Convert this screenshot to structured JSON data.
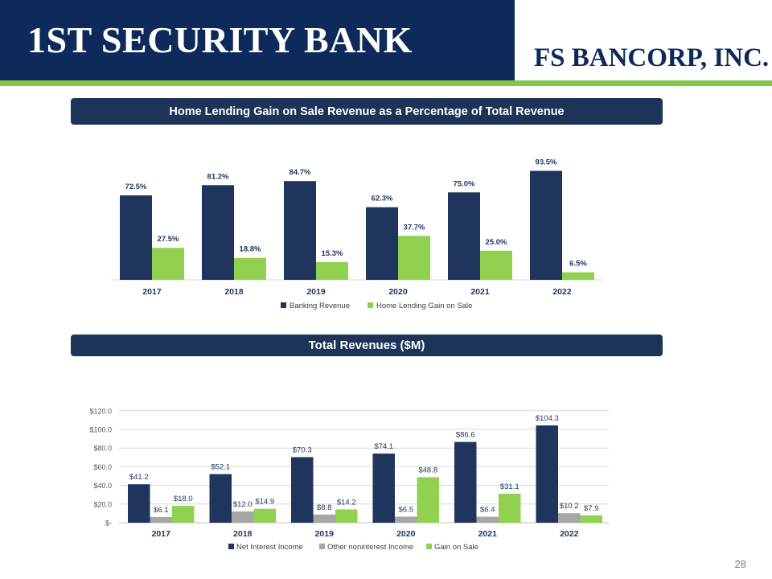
{
  "header": {
    "bank_name": "1ST SECURITY BANK",
    "parent_name": "FS BANCORP, INC."
  },
  "section1": {
    "title": "Home Lending Gain on Sale Revenue as a Percentage of Total Revenue"
  },
  "section2": {
    "title": "Total Revenues ($M)"
  },
  "page_number": "28",
  "colors": {
    "navy": "#1f355e",
    "green": "#92d050",
    "gray": "#a6a6a6",
    "header_navy": "#0e2a5a",
    "stripe_green": "#86c547"
  },
  "chart_data": [
    {
      "type": "bar",
      "categories": [
        "2017",
        "2018",
        "2019",
        "2020",
        "2021",
        "2022"
      ],
      "series": [
        {
          "name": "Banking Revenue",
          "values": [
            72.5,
            81.2,
            84.7,
            62.3,
            75.0,
            93.5
          ],
          "labels": [
            "72.5%",
            "81.2%",
            "84.7%",
            "62.3%",
            "75.0%",
            "93.5%"
          ],
          "color": "#1f355e"
        },
        {
          "name": "Home Lending Gain on Sale",
          "values": [
            27.5,
            18.8,
            15.3,
            37.7,
            25.0,
            6.5
          ],
          "labels": [
            "27.5%",
            "18.8%",
            "15.3%",
            "37.7%",
            "25.0%",
            "6.5%"
          ],
          "color": "#92d050"
        }
      ],
      "ylim": [
        0,
        100
      ],
      "grid": false,
      "legend": "bottom"
    },
    {
      "type": "bar",
      "categories": [
        "2017",
        "2018",
        "2019",
        "2020",
        "2021",
        "2022"
      ],
      "series": [
        {
          "name": "Net Interest Income",
          "values": [
            41.2,
            52.1,
            70.3,
            74.1,
            86.6,
            104.3
          ],
          "labels": [
            "$41.2",
            "$52.1",
            "$70.3",
            "$74.1",
            "$86.6",
            "$104.3"
          ],
          "color": "#1f355e"
        },
        {
          "name": "Other noninterest Income",
          "values": [
            6.1,
            12.0,
            8.8,
            6.5,
            6.4,
            10.2
          ],
          "labels": [
            "$6.1",
            "$12.0",
            "$8.8",
            "$6.5",
            "$6.4",
            "$10.2"
          ],
          "color": "#a6a6a6"
        },
        {
          "name": "Gain on Sale",
          "values": [
            18.0,
            14.9,
            14.2,
            48.8,
            31.1,
            7.9
          ],
          "labels": [
            "$18.0",
            "$14.9",
            "$14.2",
            "$48.8",
            "$31.1",
            "$7.9"
          ],
          "color": "#92d050"
        }
      ],
      "yticks": [
        0,
        20,
        40,
        60,
        80,
        100,
        120
      ],
      "ytick_labels": [
        "$-",
        "$20.0",
        "$40.0",
        "$60.0",
        "$80.0",
        "$100.0",
        "$120.0"
      ],
      "ylim": [
        0,
        120
      ],
      "grid": true,
      "legend": "bottom"
    }
  ]
}
